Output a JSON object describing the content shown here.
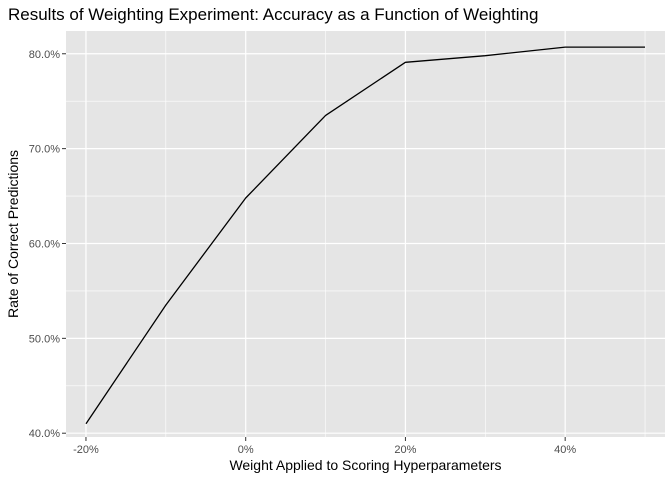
{
  "chart_data": {
    "type": "line",
    "title": "Results of Weighting Experiment: Accuracy as a Function of Weighting",
    "xlabel": "Weight Applied to Scoring Hyperparameters",
    "ylabel": "Rate of Correct Predictions",
    "x_ticks": [
      "-20%",
      "0%",
      "20%",
      "40%"
    ],
    "y_ticks": [
      "40.0%",
      "50.0%",
      "60.0%",
      "70.0%",
      "80.0%"
    ],
    "xlim": [
      -22.5,
      52.5
    ],
    "ylim": [
      39.6,
      82.4
    ],
    "grid": true,
    "panel_background": "#e5e5e5",
    "grid_color": "#ffffff",
    "line_color": "#000000",
    "series": [
      {
        "x": [
          -20,
          -10,
          0,
          10,
          20,
          30,
          40,
          50
        ],
        "y": [
          41.0,
          53.5,
          64.8,
          73.5,
          79.1,
          79.8,
          80.7,
          80.7
        ]
      }
    ]
  }
}
